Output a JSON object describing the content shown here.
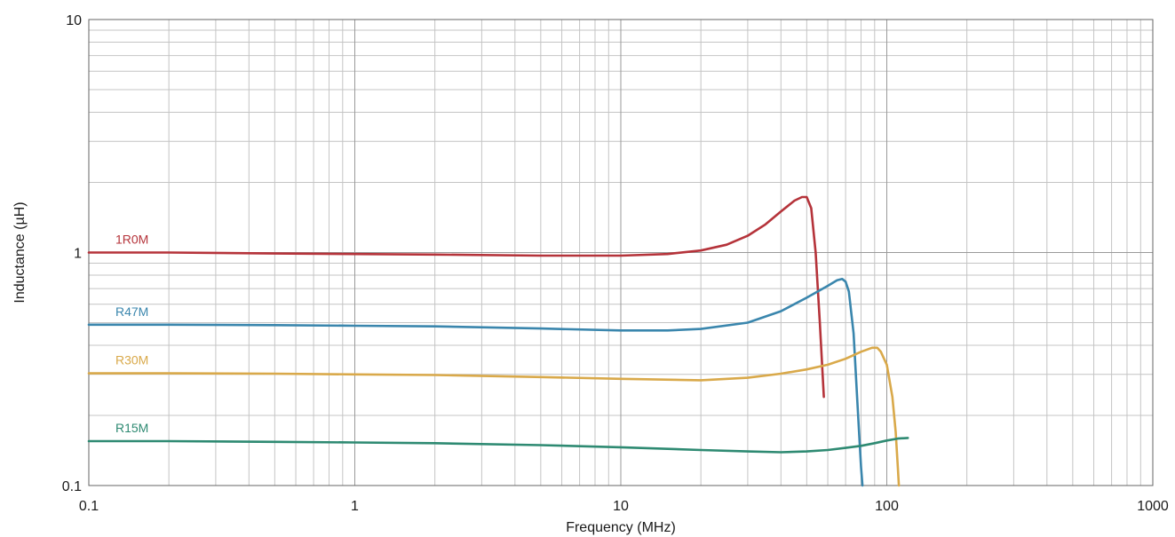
{
  "chart_data": {
    "type": "line",
    "xlabel": "Frequency (MHz)",
    "ylabel": "Inductance (µH)",
    "x_scale": "log",
    "y_scale": "log",
    "xlim": [
      0.1,
      1000
    ],
    "ylim": [
      0.1,
      10
    ],
    "x_ticks": [
      "0.1",
      "1",
      "10",
      "100",
      "1000"
    ],
    "y_ticks": [
      "0.1",
      "1",
      "10"
    ],
    "grid": true,
    "series": [
      {
        "name": "1R0M",
        "color": "#b5333a",
        "x": [
          0.1,
          0.2,
          0.5,
          1,
          2,
          5,
          10,
          15,
          20,
          25,
          30,
          35,
          40,
          45,
          48,
          50,
          52,
          54,
          56,
          58
        ],
        "y": [
          1.0,
          1.0,
          0.99,
          0.985,
          0.98,
          0.97,
          0.97,
          0.985,
          1.02,
          1.08,
          1.18,
          1.32,
          1.5,
          1.67,
          1.73,
          1.73,
          1.55,
          1.0,
          0.5,
          0.24
        ]
      },
      {
        "name": "R47M",
        "color": "#3a86ad",
        "x": [
          0.1,
          0.2,
          0.5,
          1,
          2,
          5,
          10,
          15,
          20,
          30,
          40,
          50,
          60,
          65,
          68,
          70,
          72,
          75,
          78,
          80,
          81
        ],
        "y": [
          0.49,
          0.49,
          0.488,
          0.485,
          0.482,
          0.472,
          0.463,
          0.463,
          0.47,
          0.5,
          0.56,
          0.64,
          0.72,
          0.76,
          0.77,
          0.75,
          0.68,
          0.45,
          0.2,
          0.12,
          0.1
        ]
      },
      {
        "name": "R30M",
        "color": "#d9a94a",
        "x": [
          0.1,
          0.2,
          0.5,
          1,
          2,
          5,
          10,
          20,
          30,
          40,
          50,
          60,
          70,
          80,
          88,
          92,
          95,
          100,
          105,
          108,
          110,
          111
        ],
        "y": [
          0.303,
          0.303,
          0.302,
          0.3,
          0.298,
          0.292,
          0.287,
          0.283,
          0.29,
          0.302,
          0.315,
          0.33,
          0.35,
          0.375,
          0.39,
          0.39,
          0.375,
          0.33,
          0.24,
          0.17,
          0.12,
          0.1
        ]
      },
      {
        "name": "R15M",
        "color": "#2e8a72",
        "x": [
          0.1,
          0.2,
          0.5,
          1,
          2,
          5,
          10,
          20,
          30,
          40,
          50,
          60,
          70,
          80,
          90,
          100,
          110,
          120
        ],
        "y": [
          0.155,
          0.155,
          0.154,
          0.153,
          0.152,
          0.149,
          0.146,
          0.142,
          0.14,
          0.139,
          0.14,
          0.142,
          0.145,
          0.148,
          0.152,
          0.156,
          0.159,
          0.16
        ]
      }
    ]
  }
}
